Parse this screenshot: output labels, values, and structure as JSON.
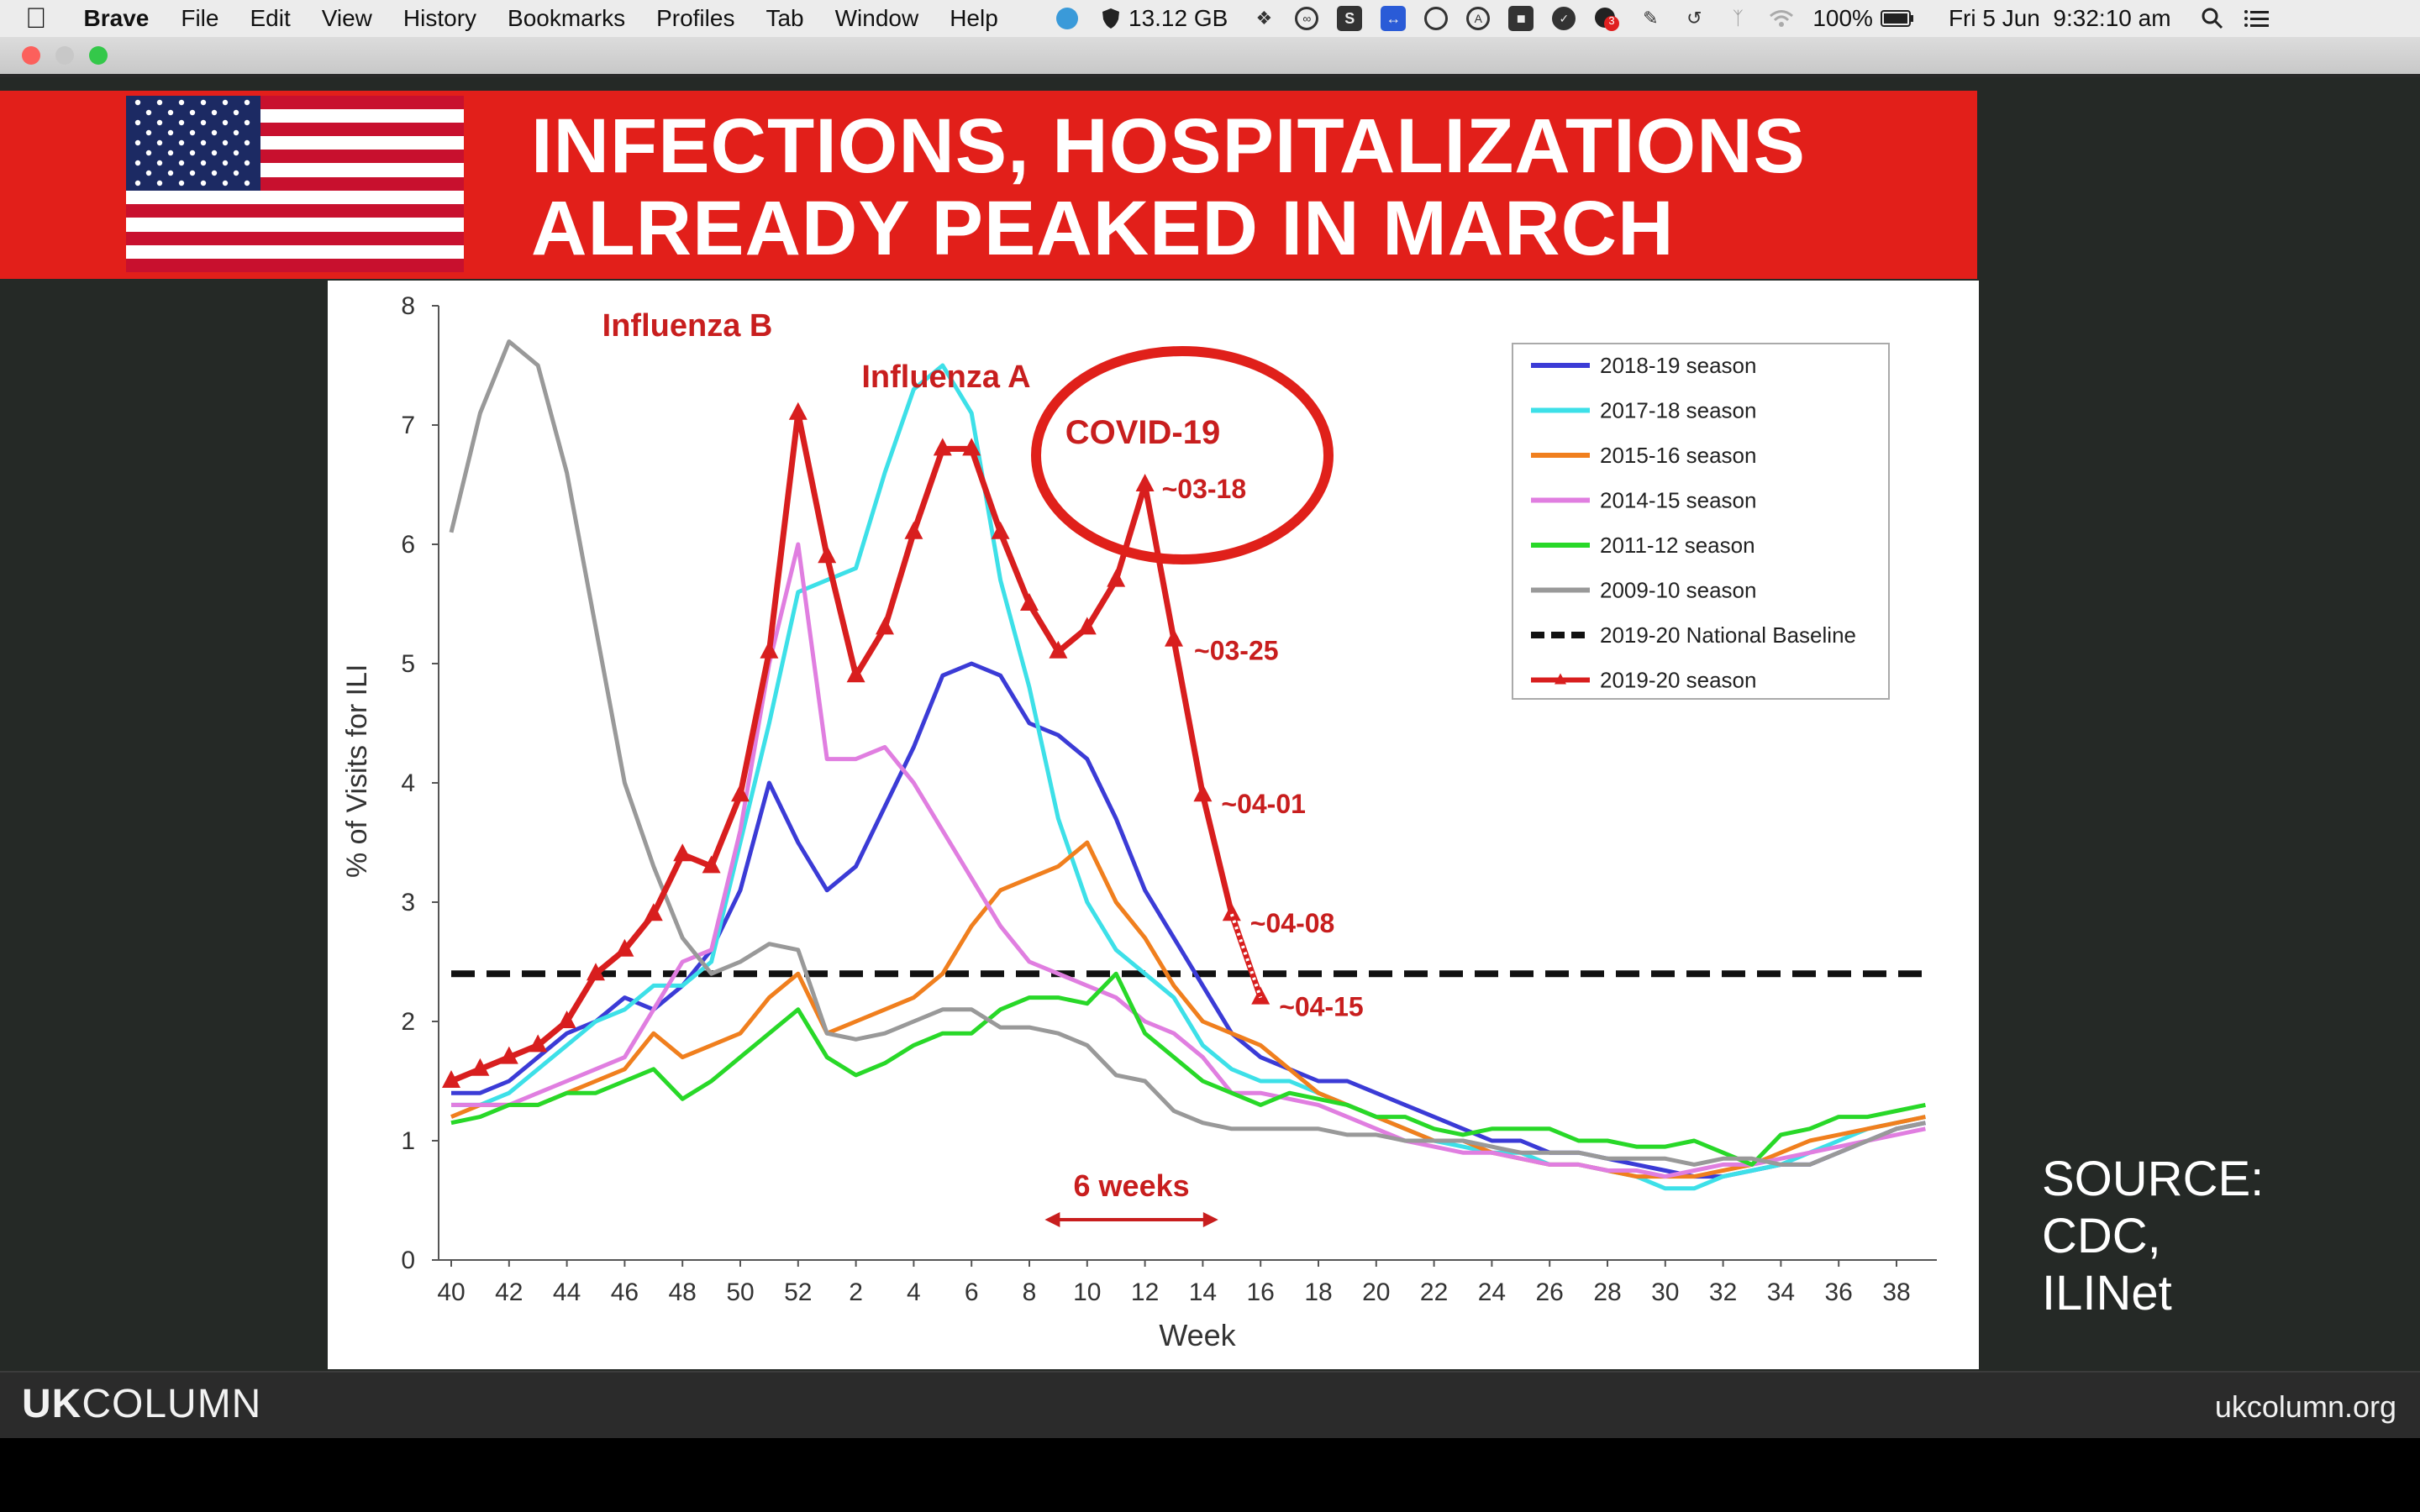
{
  "menubar": {
    "app_name": "Brave",
    "items": [
      "File",
      "Edit",
      "View",
      "History",
      "Bookmarks",
      "Profiles",
      "Tab",
      "Window",
      "Help"
    ],
    "memory": "13.12 GB",
    "notification_badge": "3",
    "battery": "100%",
    "clock": "Fri 5 Jun  9:32:10 am",
    "status_icons": [
      "globe-icon",
      "shield-icon",
      "dropbox-icon",
      "creative-cloud-icon",
      "s-app-icon",
      "teamviewer-icon",
      "circle-app-icon",
      "a-app-icon",
      "camera-app-icon",
      "check-app-icon",
      "notification-app-icon",
      "pen-app-icon",
      "time-machine-icon",
      "bluetooth-icon",
      "wifi-icon",
      "battery-icon",
      "spotlight-icon",
      "notification-center-icon"
    ]
  },
  "banner": {
    "line1": "INFECTIONS, HOSPITALIZATIONS",
    "line2": "ALREADY PEAKED IN MARCH",
    "flag": "us-flag"
  },
  "source_lines": [
    "SOURCE:",
    "CDC,",
    "ILINet"
  ],
  "footer": {
    "logo_bold": "UK",
    "logo_rest": "COLUMN",
    "site": "ukcolumn.org"
  },
  "colors": {
    "banner_red": "#e21f1a",
    "video_bg": "#252926",
    "s2018": "#3b3bd6",
    "s2017": "#3de0e8",
    "s2015": "#f07f1e",
    "s2014": "#e07ee0",
    "s2011": "#28d828",
    "s2009": "#999999",
    "s2019": "#d81e1e"
  },
  "chart_data": {
    "type": "line",
    "ylabel": "% of Visits for ILI",
    "xlabel": "Week",
    "ylim": [
      0,
      8
    ],
    "y_ticks": [
      0,
      1,
      2,
      3,
      4,
      5,
      6,
      7,
      8
    ],
    "x_tick_labels": [
      "40",
      "42",
      "44",
      "46",
      "48",
      "50",
      "52",
      "2",
      "4",
      "6",
      "8",
      "10",
      "12",
      "14",
      "16",
      "18",
      "20",
      "22",
      "24",
      "26",
      "28",
      "30",
      "32",
      "34",
      "36",
      "38"
    ],
    "legend_position": "top-right",
    "legend": [
      "2018-19 season",
      "2017-18 season",
      "2015-16 season",
      "2014-15 season",
      "2011-12 season",
      "2009-10 season",
      "2019-20 National Baseline",
      "2019-20 season"
    ],
    "baseline": 2.4,
    "annotations": {
      "influenza_b": "Influenza B",
      "influenza_a": "Influenza A",
      "covid": "COVID-19",
      "six_weeks": "6 weeks",
      "date_labels": [
        "~03-18",
        "~03-25",
        "~04-01",
        "~04-08",
        "~04-15"
      ]
    },
    "series": [
      {
        "name": "2018-19 season",
        "color": "#3b3bd6",
        "values": [
          1.4,
          1.4,
          1.5,
          1.7,
          1.9,
          2.0,
          2.2,
          2.1,
          2.3,
          2.6,
          3.1,
          4.0,
          3.5,
          3.1,
          3.3,
          3.8,
          4.3,
          4.9,
          5.0,
          4.9,
          4.5,
          4.4,
          4.2,
          3.7,
          3.1,
          2.7,
          2.3,
          1.9,
          1.7,
          1.6,
          1.5,
          1.5,
          1.4,
          1.3,
          1.2,
          1.1,
          1.0,
          1.0,
          0.9,
          0.9,
          0.85,
          0.8,
          0.75,
          0.7,
          0.7,
          0.75,
          0.8,
          0.8,
          0.9,
          1.0,
          1.1,
          1.15
        ]
      },
      {
        "name": "2017-18 season",
        "color": "#3de0e8",
        "values": [
          1.3,
          1.3,
          1.4,
          1.6,
          1.8,
          2.0,
          2.1,
          2.3,
          2.3,
          2.5,
          3.5,
          4.5,
          5.6,
          5.7,
          5.8,
          6.6,
          7.3,
          7.5,
          7.1,
          5.7,
          4.8,
          3.7,
          3.0,
          2.6,
          2.4,
          2.2,
          1.8,
          1.6,
          1.5,
          1.5,
          1.4,
          1.3,
          1.2,
          1.1,
          1.0,
          0.95,
          0.9,
          0.9,
          0.8,
          0.8,
          0.75,
          0.7,
          0.6,
          0.6,
          0.7,
          0.75,
          0.8,
          0.9,
          1.0,
          1.1,
          1.15,
          1.2
        ]
      },
      {
        "name": "2015-16 season",
        "color": "#f07f1e",
        "values": [
          1.2,
          1.3,
          1.3,
          1.3,
          1.4,
          1.5,
          1.6,
          1.9,
          1.7,
          1.8,
          1.9,
          2.2,
          2.4,
          1.9,
          2.0,
          2.1,
          2.2,
          2.4,
          2.8,
          3.1,
          3.2,
          3.3,
          3.5,
          3.0,
          2.7,
          2.3,
          2.0,
          1.9,
          1.8,
          1.6,
          1.4,
          1.3,
          1.2,
          1.1,
          1.0,
          1.0,
          0.9,
          0.85,
          0.8,
          0.8,
          0.75,
          0.7,
          0.7,
          0.7,
          0.75,
          0.8,
          0.9,
          1.0,
          1.05,
          1.1,
          1.15,
          1.2
        ]
      },
      {
        "name": "2014-15 season",
        "color": "#e07ee0",
        "values": [
          1.3,
          1.3,
          1.3,
          1.4,
          1.5,
          1.6,
          1.7,
          2.1,
          2.5,
          2.6,
          3.6,
          5.0,
          6.0,
          4.2,
          4.2,
          4.3,
          4.0,
          3.6,
          3.2,
          2.8,
          2.5,
          2.4,
          2.3,
          2.2,
          2.0,
          1.9,
          1.7,
          1.4,
          1.4,
          1.35,
          1.3,
          1.2,
          1.1,
          1.0,
          0.95,
          0.9,
          0.9,
          0.85,
          0.8,
          0.8,
          0.75,
          0.75,
          0.7,
          0.75,
          0.8,
          0.8,
          0.85,
          0.9,
          0.95,
          1.0,
          1.05,
          1.1
        ]
      },
      {
        "name": "2011-12 season",
        "color": "#28d828",
        "values": [
          1.15,
          1.2,
          1.3,
          1.3,
          1.4,
          1.4,
          1.5,
          1.6,
          1.35,
          1.5,
          1.7,
          1.9,
          2.1,
          1.7,
          1.55,
          1.65,
          1.8,
          1.9,
          1.9,
          2.1,
          2.2,
          2.2,
          2.15,
          2.4,
          1.9,
          1.7,
          1.5,
          1.4,
          1.3,
          1.4,
          1.35,
          1.3,
          1.2,
          1.2,
          1.1,
          1.05,
          1.1,
          1.1,
          1.1,
          1.0,
          1.0,
          0.95,
          0.95,
          1.0,
          0.9,
          0.8,
          1.05,
          1.1,
          1.2,
          1.2,
          1.25,
          1.3
        ]
      },
      {
        "name": "2009-10 season",
        "color": "#999999",
        "values": [
          6.1,
          7.1,
          7.7,
          7.5,
          6.6,
          5.3,
          4.0,
          3.3,
          2.7,
          2.4,
          2.5,
          2.65,
          2.6,
          1.9,
          1.85,
          1.9,
          2.0,
          2.1,
          2.1,
          1.95,
          1.95,
          1.9,
          1.8,
          1.55,
          1.5,
          1.25,
          1.15,
          1.1,
          1.1,
          1.1,
          1.1,
          1.05,
          1.05,
          1.0,
          1.0,
          1.0,
          0.95,
          0.9,
          0.9,
          0.9,
          0.85,
          0.85,
          0.85,
          0.8,
          0.85,
          0.85,
          0.8,
          0.8,
          0.9,
          1.0,
          1.1,
          1.15
        ]
      },
      {
        "name": "2019-20 season",
        "color": "#d81e1e",
        "values": [
          1.5,
          1.6,
          1.7,
          1.8,
          2.0,
          2.4,
          2.6,
          2.9,
          3.4,
          3.3,
          3.9,
          5.1,
          7.1,
          5.9,
          4.9,
          5.3,
          6.1,
          6.8,
          6.8,
          6.1,
          5.5,
          5.1,
          5.3,
          5.7,
          6.5,
          5.2,
          3.9,
          2.9,
          2.2
        ]
      }
    ]
  }
}
